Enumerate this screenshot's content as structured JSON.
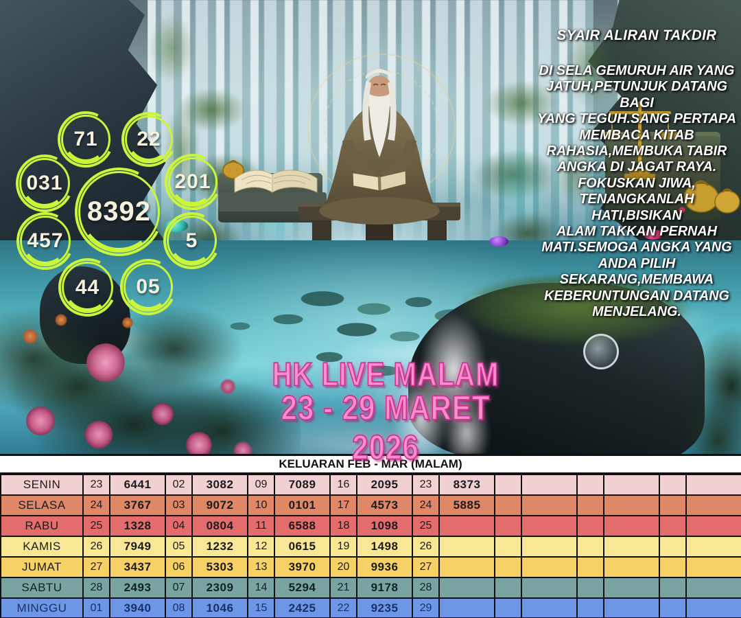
{
  "poster": {
    "title_overlay": {
      "line1": "HK LIVE MALAM",
      "line2": "23 - 29 MARET 2026"
    },
    "syair": {
      "title": "SYAIR ALIRAN TAKDIR",
      "lines": [
        "DI SELA GEMURUH AIR YANG",
        "JATUH,PETUNJUK DATANG BAGI",
        "YANG TEGUH.SANG PERTAPA",
        "MEMBACA KITAB",
        "RAHASIA,MEMBUKA TABIR",
        "ANGKA DI JAGAT RAYA.",
        "FOKUSKAN JIWA,",
        "TENANGKANLAH HATI,BISIKAN",
        "ALAM TAKKAN PERNAH",
        "MATI.SEMOGA ANGKA YANG",
        "ANDA PILIH",
        "SEKARANG,MEMBAWA",
        "KEBERUNTUNGAN DATANG",
        "MENJELANG."
      ]
    },
    "circles": {
      "values": [
        "71",
        "22",
        "031",
        "201",
        "8392",
        "457",
        "5",
        "44",
        "05"
      ]
    },
    "colors": {
      "circle_stroke": "#c9f53b",
      "circle_text": "#f6f1dc",
      "title_pink": "#f98fcb",
      "title_pink_outline": "#cf2f92",
      "syair_text": "#ffffff"
    }
  },
  "table": {
    "header": "KELUARAN FEB - MAR (MALAM)",
    "border_color": "#111111",
    "rows": [
      {
        "day": "SENIN",
        "color": "#f0d0d0",
        "text_color": "#1b1b1b",
        "cells": [
          "23",
          "6441",
          "02",
          "3082",
          "09",
          "7089",
          "16",
          "2095",
          "23",
          "8373",
          "",
          "",
          "",
          "",
          "",
          ""
        ]
      },
      {
        "day": "SELASA",
        "color": "#e08768",
        "text_color": "#1b1b1b",
        "cells": [
          "24",
          "3767",
          "03",
          "9072",
          "10",
          "0101",
          "17",
          "4573",
          "24",
          "5885",
          "",
          "",
          "",
          "",
          "",
          ""
        ]
      },
      {
        "day": "RABU",
        "color": "#e56c6c",
        "text_color": "#1b1b1b",
        "cells": [
          "25",
          "1328",
          "04",
          "0804",
          "11",
          "6588",
          "18",
          "1098",
          "25",
          "",
          "",
          "",
          "",
          "",
          "",
          ""
        ]
      },
      {
        "day": "KAMIS",
        "color": "#f8e895",
        "text_color": "#1b1b1b",
        "cells": [
          "26",
          "7949",
          "05",
          "1232",
          "12",
          "0615",
          "19",
          "1498",
          "26",
          "",
          "",
          "",
          "",
          "",
          "",
          ""
        ]
      },
      {
        "day": "JUMAT",
        "color": "#f6d266",
        "text_color": "#1b1b1b",
        "cells": [
          "27",
          "3437",
          "06",
          "5303",
          "13",
          "3970",
          "20",
          "9936",
          "27",
          "",
          "",
          "",
          "",
          "",
          "",
          ""
        ]
      },
      {
        "day": "SABTU",
        "color": "#7aa4a1",
        "text_color": "#0f2222",
        "cells": [
          "28",
          "2493",
          "07",
          "2309",
          "14",
          "5294",
          "21",
          "9178",
          "28",
          "",
          "",
          "",
          "",
          "",
          "",
          ""
        ]
      },
      {
        "day": "MINGGU",
        "color": "#6e96e6",
        "text_color": "#17306b",
        "cells": [
          "01",
          "3940",
          "08",
          "1046",
          "15",
          "2425",
          "22",
          "9235",
          "29",
          "",
          "",
          "",
          "",
          "",
          "",
          ""
        ]
      }
    ]
  }
}
